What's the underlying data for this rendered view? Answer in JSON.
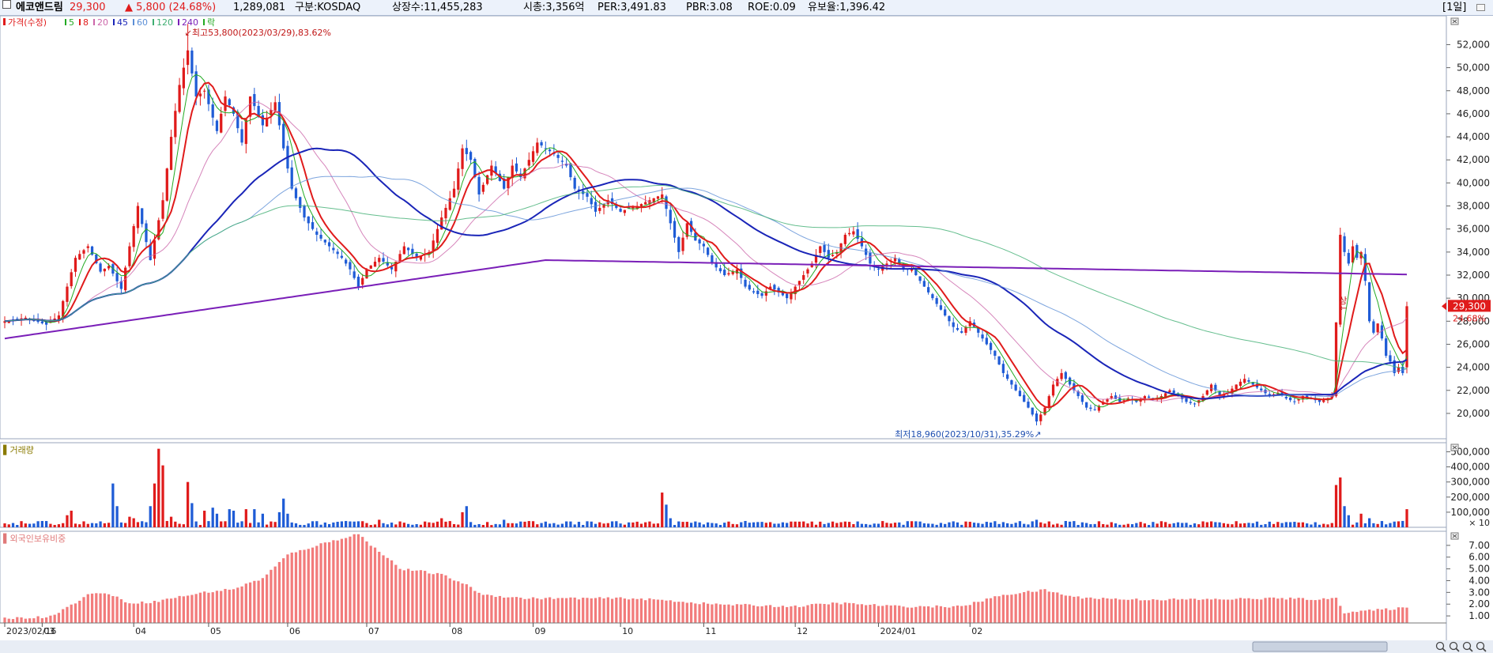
{
  "header": {
    "name": "에코앤드림",
    "price": "29,300",
    "change": "▲ 5,800 (24.68%)",
    "volume": "1,289,081",
    "market": "구분:KOSDAQ",
    "shares": "상장수:11,455,283",
    "market_cap": "시총:3,356억",
    "per": "PER:3,491.83",
    "pbr": "PBR:3.08",
    "roe": "ROE:0.09",
    "float_ratio": "유보율:1,396.42",
    "period": "[1일]",
    "colors": {
      "up": "#e01b1b",
      "down": "#1f5cd6",
      "name": "#000000"
    }
  },
  "chart_data": [
    {
      "type": "candlestick",
      "title": "",
      "legend": [
        {
          "label": "가격(수정)",
          "color": "#e01b1b"
        },
        {
          "label": "5",
          "color": "#22aa22"
        },
        {
          "label": "8",
          "color": "#e01b1b"
        },
        {
          "label": "20",
          "color": "#cc66aa"
        },
        {
          "label": "45",
          "color": "#1a25b8"
        },
        {
          "label": "60",
          "color": "#5c8fd6"
        },
        {
          "label": "120",
          "color": "#3fae72"
        },
        {
          "label": "240",
          "color": "#7a1fb8"
        },
        {
          "label": "락",
          "color": "#22aa22"
        }
      ],
      "y_ticks": [
        20000,
        22000,
        24000,
        26000,
        28000,
        30000,
        32000,
        34000,
        36000,
        38000,
        40000,
        42000,
        44000,
        46000,
        48000,
        50000,
        52000
      ],
      "y_tick_labels": [
        "20,000",
        "22,000",
        "24,000",
        "26,000",
        "28,000",
        "30,000",
        "32,000",
        "34,000",
        "36,000",
        "38,000",
        "40,000",
        "42,000",
        "44,000",
        "46,000",
        "48,000",
        "50,000",
        "52,000"
      ],
      "ylim": [
        17800,
        54500
      ],
      "annotations": {
        "high": "최고53,800(2023/03/29),83.62%",
        "low": "최저18,960(2023/10/31),35.29%",
        "current_price": "29,300",
        "current_change": "24.68%",
        "limit_up_mark": "상"
      },
      "waypoints": [
        {
          "i": 0,
          "c": 28000
        },
        {
          "i": 5,
          "c": 28300
        },
        {
          "i": 10,
          "c": 27700
        },
        {
          "i": 13,
          "c": 28500
        },
        {
          "i": 17,
          "c": 33500
        },
        {
          "i": 20,
          "c": 34500
        },
        {
          "i": 23,
          "c": 32300
        },
        {
          "i": 25,
          "c": 32800
        },
        {
          "i": 28,
          "c": 30800
        },
        {
          "i": 30,
          "c": 34500
        },
        {
          "i": 32,
          "c": 38000
        },
        {
          "i": 35,
          "c": 33300
        },
        {
          "i": 38,
          "c": 38500
        },
        {
          "i": 40,
          "c": 44000
        },
        {
          "i": 42,
          "c": 48500
        },
        {
          "i": 44,
          "c": 51500
        },
        {
          "i": 46,
          "c": 47500
        },
        {
          "i": 48,
          "c": 48000
        },
        {
          "i": 51,
          "c": 44500
        },
        {
          "i": 53,
          "c": 47500
        },
        {
          "i": 55,
          "c": 46000
        },
        {
          "i": 57,
          "c": 43500
        },
        {
          "i": 59,
          "c": 47500
        },
        {
          "i": 62,
          "c": 45000
        },
        {
          "i": 65,
          "c": 47000
        },
        {
          "i": 67,
          "c": 43000
        },
        {
          "i": 69,
          "c": 39500
        },
        {
          "i": 72,
          "c": 37000
        },
        {
          "i": 75,
          "c": 35500
        },
        {
          "i": 78,
          "c": 34500
        },
        {
          "i": 81,
          "c": 33500
        },
        {
          "i": 83,
          "c": 32500
        },
        {
          "i": 85,
          "c": 31000
        },
        {
          "i": 87,
          "c": 32500
        },
        {
          "i": 90,
          "c": 33500
        },
        {
          "i": 93,
          "c": 32500
        },
        {
          "i": 96,
          "c": 34500
        },
        {
          "i": 99,
          "c": 33500
        },
        {
          "i": 102,
          "c": 34000
        },
        {
          "i": 105,
          "c": 37000
        },
        {
          "i": 108,
          "c": 39500
        },
        {
          "i": 110,
          "c": 43000
        },
        {
          "i": 112,
          "c": 42000
        },
        {
          "i": 114,
          "c": 39000
        },
        {
          "i": 117,
          "c": 41500
        },
        {
          "i": 120,
          "c": 39500
        },
        {
          "i": 122,
          "c": 41500
        },
        {
          "i": 124,
          "c": 40500
        },
        {
          "i": 126,
          "c": 42000
        },
        {
          "i": 128,
          "c": 43500
        },
        {
          "i": 130,
          "c": 43000
        },
        {
          "i": 132,
          "c": 42500
        },
        {
          "i": 135,
          "c": 41500
        },
        {
          "i": 137,
          "c": 39500
        },
        {
          "i": 140,
          "c": 38800
        },
        {
          "i": 142,
          "c": 37500
        },
        {
          "i": 145,
          "c": 38500
        },
        {
          "i": 148,
          "c": 37500
        },
        {
          "i": 150,
          "c": 37800
        },
        {
          "i": 152,
          "c": 38000
        },
        {
          "i": 155,
          "c": 38500
        },
        {
          "i": 158,
          "c": 39000
        },
        {
          "i": 160,
          "c": 36500
        },
        {
          "i": 162,
          "c": 34000
        },
        {
          "i": 164,
          "c": 36500
        },
        {
          "i": 166,
          "c": 35000
        },
        {
          "i": 168,
          "c": 34500
        },
        {
          "i": 170,
          "c": 33000
        },
        {
          "i": 173,
          "c": 32000
        },
        {
          "i": 176,
          "c": 32500
        },
        {
          "i": 178,
          "c": 31000
        },
        {
          "i": 180,
          "c": 30500
        },
        {
          "i": 182,
          "c": 30200
        },
        {
          "i": 184,
          "c": 31000
        },
        {
          "i": 186,
          "c": 30500
        },
        {
          "i": 188,
          "c": 30000
        },
        {
          "i": 190,
          "c": 31000
        },
        {
          "i": 192,
          "c": 32000
        },
        {
          "i": 194,
          "c": 33000
        },
        {
          "i": 196,
          "c": 34500
        },
        {
          "i": 198,
          "c": 33500
        },
        {
          "i": 200,
          "c": 34000
        },
        {
          "i": 202,
          "c": 35500
        },
        {
          "i": 204,
          "c": 35800
        },
        {
          "i": 206,
          "c": 34500
        },
        {
          "i": 208,
          "c": 33000
        },
        {
          "i": 210,
          "c": 32500
        },
        {
          "i": 212,
          "c": 33000
        },
        {
          "i": 214,
          "c": 33500
        },
        {
          "i": 216,
          "c": 32500
        },
        {
          "i": 218,
          "c": 32500
        },
        {
          "i": 220,
          "c": 31500
        },
        {
          "i": 222,
          "c": 30500
        },
        {
          "i": 224,
          "c": 29500
        },
        {
          "i": 226,
          "c": 28500
        },
        {
          "i": 228,
          "c": 27500
        },
        {
          "i": 230,
          "c": 27000
        },
        {
          "i": 232,
          "c": 28000
        },
        {
          "i": 234,
          "c": 27000
        },
        {
          "i": 236,
          "c": 26000
        },
        {
          "i": 238,
          "c": 25000
        },
        {
          "i": 240,
          "c": 23500
        },
        {
          "i": 242,
          "c": 22500
        },
        {
          "i": 244,
          "c": 21500
        },
        {
          "i": 246,
          "c": 20500
        },
        {
          "i": 248,
          "c": 19300
        },
        {
          "i": 250,
          "c": 20500
        },
        {
          "i": 252,
          "c": 22500
        },
        {
          "i": 254,
          "c": 23500
        },
        {
          "i": 256,
          "c": 22500
        },
        {
          "i": 258,
          "c": 21500
        },
        {
          "i": 260,
          "c": 20500
        },
        {
          "i": 262,
          "c": 20300
        },
        {
          "i": 264,
          "c": 21000
        },
        {
          "i": 266,
          "c": 21500
        },
        {
          "i": 268,
          "c": 21000
        },
        {
          "i": 270,
          "c": 21300
        },
        {
          "i": 272,
          "c": 21000
        },
        {
          "i": 274,
          "c": 21500
        },
        {
          "i": 276,
          "c": 21200
        },
        {
          "i": 278,
          "c": 21500
        },
        {
          "i": 280,
          "c": 22000
        },
        {
          "i": 282,
          "c": 21500
        },
        {
          "i": 284,
          "c": 21000
        },
        {
          "i": 286,
          "c": 20800
        },
        {
          "i": 288,
          "c": 21500
        },
        {
          "i": 290,
          "c": 22500
        },
        {
          "i": 292,
          "c": 21500
        },
        {
          "i": 294,
          "c": 21800
        },
        {
          "i": 296,
          "c": 22500
        },
        {
          "i": 298,
          "c": 23000
        },
        {
          "i": 300,
          "c": 22500
        },
        {
          "i": 302,
          "c": 22000
        },
        {
          "i": 304,
          "c": 21500
        },
        {
          "i": 306,
          "c": 21800
        },
        {
          "i": 308,
          "c": 21300
        },
        {
          "i": 310,
          "c": 21000
        },
        {
          "i": 312,
          "c": 21500
        },
        {
          "i": 314,
          "c": 21300
        },
        {
          "i": 316,
          "c": 21000
        },
        {
          "i": 318,
          "c": 21300
        },
        {
          "i": 319,
          "c": 21500
        },
        {
          "i": 320,
          "c": 27900
        },
        {
          "i": 321,
          "c": 35500
        },
        {
          "i": 322,
          "c": 34000
        },
        {
          "i": 323,
          "c": 33000
        },
        {
          "i": 324,
          "c": 34500
        },
        {
          "i": 325,
          "c": 33500
        },
        {
          "i": 326,
          "c": 34000
        },
        {
          "i": 327,
          "c": 31500
        },
        {
          "i": 328,
          "c": 28000
        },
        {
          "i": 329,
          "c": 27000
        },
        {
          "i": 330,
          "c": 27800
        },
        {
          "i": 331,
          "c": 26500
        },
        {
          "i": 332,
          "c": 25000
        },
        {
          "i": 333,
          "c": 24500
        },
        {
          "i": 334,
          "c": 23500
        },
        {
          "i": 335,
          "c": 24000
        },
        {
          "i": 336,
          "c": 23500
        },
        {
          "i": 337,
          "c": 29300
        }
      ],
      "ma_periods": [
        5,
        8,
        20,
        45,
        60,
        120,
        240
      ],
      "ma240_start": 26500,
      "ma240_drift": 25
    },
    {
      "type": "bar",
      "title": "거래량",
      "y_ticks": [
        100000,
        200000,
        300000,
        400000,
        500000
      ],
      "y_tick_labels": [
        "100,000",
        "200,000",
        "300,000",
        "400,000",
        "500,000"
      ],
      "unit_label": "× 10",
      "ylim": [
        0,
        560000
      ],
      "base_volume": 30000,
      "spikes": [
        {
          "i": 15,
          "v": 80000
        },
        {
          "i": 16,
          "v": 110000
        },
        {
          "i": 26,
          "v": 290000
        },
        {
          "i": 27,
          "v": 140000
        },
        {
          "i": 30,
          "v": 70000
        },
        {
          "i": 31,
          "v": 60000
        },
        {
          "i": 35,
          "v": 140000
        },
        {
          "i": 36,
          "v": 290000
        },
        {
          "i": 37,
          "v": 520000
        },
        {
          "i": 38,
          "v": 410000
        },
        {
          "i": 40,
          "v": 70000
        },
        {
          "i": 44,
          "v": 300000
        },
        {
          "i": 45,
          "v": 160000
        },
        {
          "i": 48,
          "v": 110000
        },
        {
          "i": 50,
          "v": 130000
        },
        {
          "i": 51,
          "v": 90000
        },
        {
          "i": 54,
          "v": 120000
        },
        {
          "i": 55,
          "v": 110000
        },
        {
          "i": 58,
          "v": 120000
        },
        {
          "i": 60,
          "v": 120000
        },
        {
          "i": 62,
          "v": 90000
        },
        {
          "i": 66,
          "v": 100000
        },
        {
          "i": 67,
          "v": 190000
        },
        {
          "i": 68,
          "v": 90000
        },
        {
          "i": 90,
          "v": 50000
        },
        {
          "i": 105,
          "v": 60000
        },
        {
          "i": 110,
          "v": 100000
        },
        {
          "i": 111,
          "v": 140000
        },
        {
          "i": 120,
          "v": 50000
        },
        {
          "i": 140,
          "v": 40000
        },
        {
          "i": 158,
          "v": 230000
        },
        {
          "i": 159,
          "v": 150000
        },
        {
          "i": 160,
          "v": 60000
        },
        {
          "i": 248,
          "v": 50000
        },
        {
          "i": 320,
          "v": 280000
        },
        {
          "i": 321,
          "v": 330000
        },
        {
          "i": 322,
          "v": 140000
        },
        {
          "i": 323,
          "v": 80000
        },
        {
          "i": 326,
          "v": 90000
        },
        {
          "i": 328,
          "v": 60000
        },
        {
          "i": 337,
          "v": 120000
        }
      ]
    },
    {
      "type": "bar",
      "title": "외국인보유비중",
      "y_ticks": [
        1,
        2,
        3,
        4,
        5,
        6,
        7
      ],
      "y_tick_labels": [
        "1.00",
        "2.00",
        "3.00",
        "4.00",
        "5.00",
        "6.00",
        "7.00"
      ],
      "ylim": [
        0.4,
        8.2
      ],
      "waypoints": [
        {
          "i": 0,
          "v": 0.8
        },
        {
          "i": 10,
          "v": 0.9
        },
        {
          "i": 14,
          "v": 1.5
        },
        {
          "i": 20,
          "v": 2.8
        },
        {
          "i": 24,
          "v": 3.0
        },
        {
          "i": 30,
          "v": 2.1
        },
        {
          "i": 36,
          "v": 2.2
        },
        {
          "i": 40,
          "v": 2.5
        },
        {
          "i": 48,
          "v": 3.0
        },
        {
          "i": 55,
          "v": 3.3
        },
        {
          "i": 62,
          "v": 4.2
        },
        {
          "i": 68,
          "v": 6.2
        },
        {
          "i": 75,
          "v": 7.0
        },
        {
          "i": 80,
          "v": 7.5
        },
        {
          "i": 85,
          "v": 8.0
        },
        {
          "i": 88,
          "v": 7.0
        },
        {
          "i": 92,
          "v": 6.0
        },
        {
          "i": 95,
          "v": 5.0
        },
        {
          "i": 100,
          "v": 4.8
        },
        {
          "i": 105,
          "v": 4.5
        },
        {
          "i": 110,
          "v": 3.8
        },
        {
          "i": 115,
          "v": 2.8
        },
        {
          "i": 125,
          "v": 2.5
        },
        {
          "i": 150,
          "v": 2.5
        },
        {
          "i": 160,
          "v": 2.3
        },
        {
          "i": 170,
          "v": 2.0
        },
        {
          "i": 190,
          "v": 1.8
        },
        {
          "i": 200,
          "v": 2.1
        },
        {
          "i": 215,
          "v": 1.8
        },
        {
          "i": 230,
          "v": 1.8
        },
        {
          "i": 240,
          "v": 2.8
        },
        {
          "i": 250,
          "v": 3.2
        },
        {
          "i": 257,
          "v": 2.6
        },
        {
          "i": 270,
          "v": 2.4
        },
        {
          "i": 290,
          "v": 2.4
        },
        {
          "i": 305,
          "v": 2.5
        },
        {
          "i": 318,
          "v": 2.4
        },
        {
          "i": 320,
          "v": 2.6
        },
        {
          "i": 322,
          "v": 1.3
        },
        {
          "i": 330,
          "v": 1.5
        },
        {
          "i": 337,
          "v": 1.7
        }
      ]
    }
  ],
  "x_axis": {
    "count": 338,
    "labels": [
      {
        "i": 0,
        "text": "2023/02/16"
      },
      {
        "i": 9,
        "text": "03"
      },
      {
        "i": 31,
        "text": "04"
      },
      {
        "i": 49,
        "text": "05"
      },
      {
        "i": 68,
        "text": "06"
      },
      {
        "i": 87,
        "text": "07"
      },
      {
        "i": 107,
        "text": "08"
      },
      {
        "i": 127,
        "text": "09"
      },
      {
        "i": 148,
        "text": "10"
      },
      {
        "i": 168,
        "text": "11"
      },
      {
        "i": 190,
        "text": "12"
      },
      {
        "i": 210,
        "text": "2024/01"
      },
      {
        "i": 232,
        "text": "02"
      }
    ]
  }
}
